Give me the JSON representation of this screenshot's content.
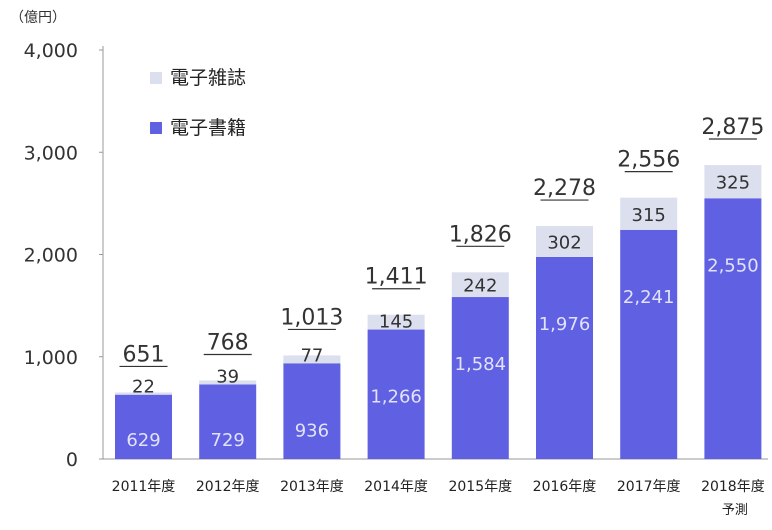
{
  "chart_data": {
    "type": "bar",
    "stacked": true,
    "unit": "（億円）",
    "categories": [
      "2011年度",
      "2012年度",
      "2013年度",
      "2014年度",
      "2015年度",
      "2016年度",
      "2017年度",
      "2018年度"
    ],
    "category_note": "予測",
    "series": [
      {
        "name": "電子書籍",
        "values": [
          629,
          729,
          936,
          1266,
          1584,
          1976,
          2241,
          2550
        ],
        "color": "#6060e2"
      },
      {
        "name": "電子雑誌",
        "values": [
          22,
          39,
          77,
          145,
          242,
          302,
          315,
          325
        ],
        "color": "#dcdfee"
      }
    ],
    "totals": [
      651,
      768,
      1013,
      1411,
      1826,
      2278,
      2556,
      2875
    ],
    "total_labels": [
      "651",
      "768",
      "1,013",
      "1,411",
      "1,826",
      "2,278",
      "2,556",
      "2,875"
    ],
    "book_labels": [
      "629",
      "729",
      "936",
      "1,266",
      "1,584",
      "1,976",
      "2,241",
      "2,550"
    ],
    "magazine_labels": [
      "22",
      "39",
      "77",
      "145",
      "242",
      "302",
      "315",
      "325"
    ],
    "ylim": [
      0,
      4000
    ],
    "yticks": [
      0,
      1000,
      2000,
      3000,
      4000
    ],
    "ytick_labels": [
      "0",
      "1,000",
      "2,000",
      "3,000",
      "4,000"
    ],
    "grid": false,
    "legend_position": "top-left",
    "legend_order": [
      "電子雑誌",
      "電子書籍"
    ]
  }
}
